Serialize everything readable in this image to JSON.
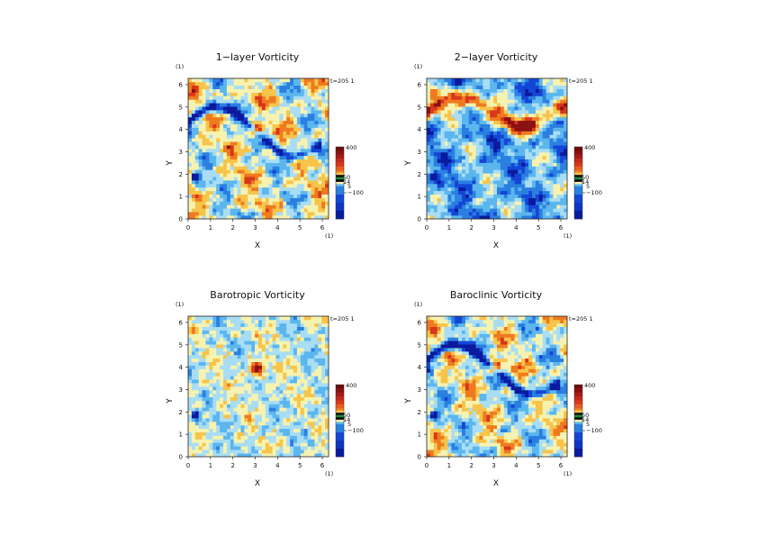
{
  "chart_data": [
    {
      "type": "heatmap",
      "title": "1−layer Vorticity",
      "xlabel": "X",
      "ylabel": "Y",
      "x_unit": "(1)",
      "y_unit": "(1)",
      "time_label": "t=205 1",
      "xlim": [
        0,
        6.28
      ],
      "ylim": [
        0,
        6.28
      ],
      "ticks": [
        "0",
        "1",
        "2",
        "3",
        "4",
        "5",
        "6"
      ],
      "field": "one_layer",
      "colorbar": {
        "max_label": "400",
        "mid_labels": [
          "50",
          "14",
          "5"
        ],
        "min_label": "−100"
      }
    },
    {
      "type": "heatmap",
      "title": "2−layer Vorticity",
      "xlabel": "X",
      "ylabel": "Y",
      "x_unit": "(1)",
      "y_unit": "(1)",
      "time_label": "t=205 1",
      "xlim": [
        0,
        6.28
      ],
      "ylim": [
        0,
        6.28
      ],
      "ticks": [
        "0",
        "1",
        "2",
        "3",
        "4",
        "5",
        "6"
      ],
      "field": "two_layer",
      "colorbar": {
        "max_label": "400",
        "mid_labels": [
          "50",
          "14",
          "5"
        ],
        "min_label": "−100"
      }
    },
    {
      "type": "heatmap",
      "title": "Barotropic Vorticity",
      "xlabel": "X",
      "ylabel": "Y",
      "x_unit": "(1)",
      "y_unit": "(1)",
      "time_label": "t=205 1",
      "xlim": [
        0,
        6.28
      ],
      "ylim": [
        0,
        6.28
      ],
      "ticks": [
        "0",
        "1",
        "2",
        "3",
        "4",
        "5",
        "6"
      ],
      "field": "barotropic",
      "colorbar": {
        "max_label": "400",
        "mid_labels": [
          "50",
          "14",
          "5"
        ],
        "min_label": "−100"
      }
    },
    {
      "type": "heatmap",
      "title": "Baroclinic Vorticity",
      "xlabel": "X",
      "ylabel": "Y",
      "x_unit": "(1)",
      "y_unit": "(1)",
      "time_label": "t=205 1",
      "xlim": [
        0,
        6.28
      ],
      "ylim": [
        0,
        6.28
      ],
      "ticks": [
        "0",
        "1",
        "2",
        "3",
        "4",
        "5",
        "6"
      ],
      "field": "baroclinic",
      "colorbar": {
        "max_label": "400",
        "mid_labels": [
          "50",
          "14",
          "5"
        ],
        "min_label": "−100"
      }
    }
  ],
  "colors": {
    "scale": [
      "#0a1a9e",
      "#1346d6",
      "#2a7fe0",
      "#5bb6ee",
      "#a8ddf4",
      "#f6f2b0",
      "#f7c44a",
      "#ef7a1f",
      "#d8361b",
      "#8a1111"
    ],
    "band_dark": "#111111",
    "band_green": "#1f8a3b",
    "band_black": "#000000"
  }
}
